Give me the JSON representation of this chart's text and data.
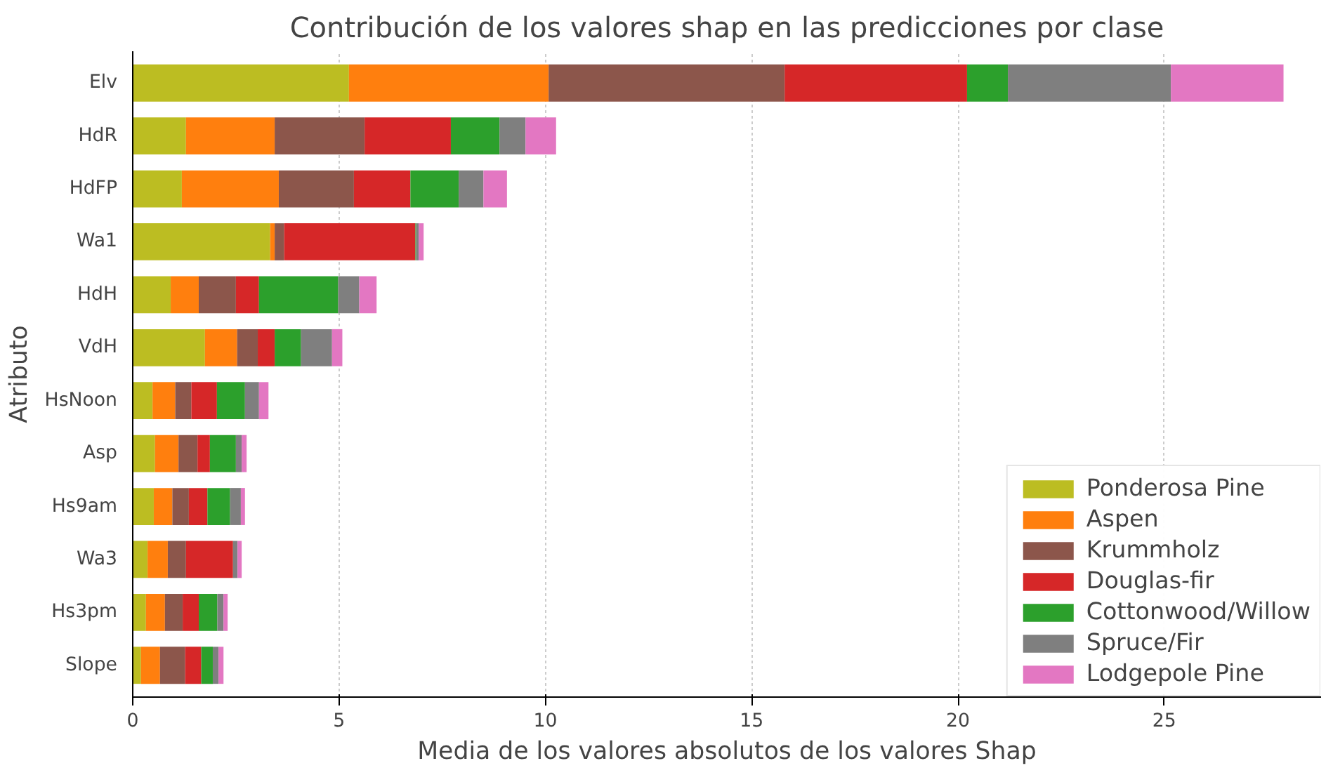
{
  "chart_data": {
    "type": "bar",
    "orientation": "horizontal",
    "stacked": true,
    "title": "Contribución de los valores shap en las predicciones por clase",
    "xlabel": "Media de los valores absolutos de los valores Shap",
    "ylabel": "Atributo",
    "categories": [
      "Elv",
      "HdR",
      "HdFP",
      "Wa1",
      "HdH",
      "VdH",
      "HsNoon",
      "Asp",
      "Hs9am",
      "Wa3",
      "Hs3pm",
      "Slope"
    ],
    "series": [
      {
        "name": "Ponderosa Pine",
        "color": "#bcbd22",
        "values": [
          5.24,
          1.29,
          1.19,
          3.33,
          0.92,
          1.75,
          0.48,
          0.54,
          0.51,
          0.36,
          0.32,
          0.2
        ]
      },
      {
        "name": "Aspen",
        "color": "#ff7f0e",
        "values": [
          4.84,
          2.15,
          2.35,
          0.11,
          0.68,
          0.78,
          0.55,
          0.57,
          0.45,
          0.49,
          0.46,
          0.46
        ]
      },
      {
        "name": "Krummholz",
        "color": "#8c564b",
        "values": [
          5.72,
          2.18,
          1.82,
          0.23,
          0.9,
          0.5,
          0.39,
          0.46,
          0.4,
          0.44,
          0.43,
          0.61
        ]
      },
      {
        "name": "Douglas-fir",
        "color": "#d62728",
        "values": [
          4.42,
          2.09,
          1.37,
          3.18,
          0.56,
          0.41,
          0.62,
          0.3,
          0.45,
          1.14,
          0.39,
          0.39
        ]
      },
      {
        "name": "Cottonwood/Willow",
        "color": "#2ca02c",
        "values": [
          0.99,
          1.18,
          1.17,
          0.02,
          1.92,
          0.64,
          0.68,
          0.63,
          0.55,
          null,
          0.45,
          0.28
        ]
      },
      {
        "name": "Spruce/Fir",
        "color": "#7f7f7f",
        "values": [
          3.95,
          0.63,
          0.6,
          0.06,
          0.51,
          0.75,
          0.34,
          0.14,
          0.26,
          0.11,
          0.15,
          0.14
        ]
      },
      {
        "name": "Lodgepole Pine",
        "color": "#e377c2",
        "values": [
          2.73,
          0.74,
          0.57,
          0.12,
          0.42,
          0.25,
          0.23,
          0.12,
          0.1,
          0.1,
          0.1,
          0.12
        ]
      }
    ],
    "xlim": [
      0,
      28.8
    ],
    "xticks": [
      0,
      5,
      10,
      15,
      20,
      25
    ],
    "grid": "x",
    "legend": "bottom right"
  }
}
